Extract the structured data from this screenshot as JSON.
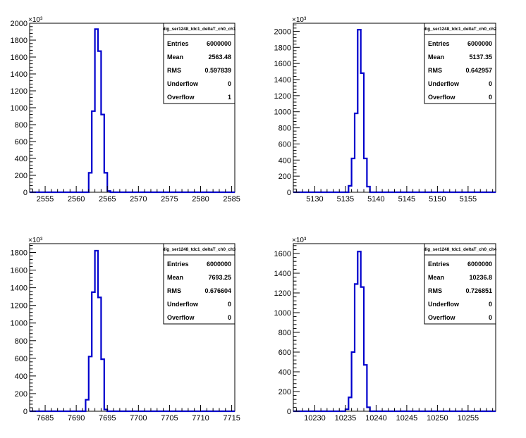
{
  "colors": {
    "histogram": "#0000cc",
    "axis": "#000000",
    "background": "#ffffff"
  },
  "chart_data": [
    {
      "type": "bar",
      "histogram_name": "dig_ser1248_tdc1_deltaT_ch0_ch1",
      "exponent_label": "×10³",
      "xlim": [
        2552.5,
        2585.5
      ],
      "xticks": [
        2555,
        2560,
        2565,
        2570,
        2575,
        2580,
        2585
      ],
      "ylim": [
        0,
        2000
      ],
      "yticks": [
        0,
        200,
        400,
        600,
        800,
        1000,
        1200,
        1400,
        1600,
        1800,
        2000
      ],
      "bin_width": 0.5,
      "bins": [
        {
          "x": 2562.0,
          "value": 230
        },
        {
          "x": 2562.5,
          "value": 960
        },
        {
          "x": 2563.0,
          "value": 1930
        },
        {
          "x": 2563.5,
          "value": 1670
        },
        {
          "x": 2564.0,
          "value": 920
        },
        {
          "x": 2564.5,
          "value": 230
        },
        {
          "x": 2565.0,
          "value": 15
        }
      ],
      "stats": [
        {
          "label": "Entries",
          "value": "6000000"
        },
        {
          "label": "Mean",
          "value": "2563.48"
        },
        {
          "label": "RMS",
          "value": "0.597839"
        },
        {
          "label": "Underflow",
          "value": "0"
        },
        {
          "label": "Overflow",
          "value": "1"
        }
      ]
    },
    {
      "type": "bar",
      "histogram_name": "dig_ser1248_tdc1_deltaT_ch0_ch2",
      "exponent_label": "×10³",
      "xlim": [
        5126.5,
        5159.5
      ],
      "xticks": [
        5130,
        5135,
        5140,
        5145,
        5150,
        5155
      ],
      "ylim": [
        0,
        2100
      ],
      "yticks": [
        0,
        200,
        400,
        600,
        800,
        1000,
        1200,
        1400,
        1600,
        1800,
        2000
      ],
      "bin_width": 0.5,
      "bins": [
        {
          "x": 5135.5,
          "value": 80
        },
        {
          "x": 5136.0,
          "value": 420
        },
        {
          "x": 5136.5,
          "value": 980
        },
        {
          "x": 5137.0,
          "value": 2020
        },
        {
          "x": 5137.5,
          "value": 1480
        },
        {
          "x": 5138.0,
          "value": 420
        },
        {
          "x": 5138.5,
          "value": 70
        }
      ],
      "stats": [
        {
          "label": "Entries",
          "value": "6000000"
        },
        {
          "label": "Mean",
          "value": "5137.35"
        },
        {
          "label": "RMS",
          "value": "0.642957"
        },
        {
          "label": "Underflow",
          "value": "0"
        },
        {
          "label": "Overflow",
          "value": "0"
        }
      ]
    },
    {
      "type": "bar",
      "histogram_name": "dig_ser1248_tdc1_deltaT_ch0_ch3",
      "exponent_label": "×10³",
      "xlim": [
        7682.5,
        7715.5
      ],
      "xticks": [
        7685,
        7690,
        7695,
        7700,
        7705,
        7710,
        7715
      ],
      "ylim": [
        0,
        1900
      ],
      "yticks": [
        0,
        200,
        400,
        600,
        800,
        1000,
        1200,
        1400,
        1600,
        1800
      ],
      "bin_width": 0.5,
      "bins": [
        {
          "x": 7691.5,
          "value": 130
        },
        {
          "x": 7692.0,
          "value": 620
        },
        {
          "x": 7692.5,
          "value": 1350
        },
        {
          "x": 7693.0,
          "value": 1820
        },
        {
          "x": 7693.5,
          "value": 1290
        },
        {
          "x": 7694.0,
          "value": 590
        },
        {
          "x": 7694.5,
          "value": 20
        }
      ],
      "stats": [
        {
          "label": "Entries",
          "value": "6000000"
        },
        {
          "label": "Mean",
          "value": "7693.25"
        },
        {
          "label": "RMS",
          "value": "0.676604"
        },
        {
          "label": "Underflow",
          "value": "0"
        },
        {
          "label": "Overflow",
          "value": "0"
        }
      ]
    },
    {
      "type": "bar",
      "histogram_name": "dig_ser1248_tdc1_deltaT_ch0_ch4",
      "exponent_label": "×10³",
      "xlim": [
        10226.5,
        10259.5
      ],
      "xticks": [
        10230,
        10235,
        10240,
        10245,
        10250,
        10255
      ],
      "ylim": [
        0,
        1700
      ],
      "yticks": [
        0,
        200,
        400,
        600,
        800,
        1000,
        1200,
        1400,
        1600
      ],
      "bin_width": 0.5,
      "bins": [
        {
          "x": 10235.0,
          "value": 20
        },
        {
          "x": 10235.5,
          "value": 140
        },
        {
          "x": 10236.0,
          "value": 600
        },
        {
          "x": 10236.5,
          "value": 1290
        },
        {
          "x": 10237.0,
          "value": 1620
        },
        {
          "x": 10237.5,
          "value": 1260
        },
        {
          "x": 10238.0,
          "value": 470
        },
        {
          "x": 10238.5,
          "value": 40
        }
      ],
      "stats": [
        {
          "label": "Entries",
          "value": "6000000"
        },
        {
          "label": "Mean",
          "value": "10236.8"
        },
        {
          "label": "RMS",
          "value": "0.726851"
        },
        {
          "label": "Underflow",
          "value": "0"
        },
        {
          "label": "Overflow",
          "value": "0"
        }
      ]
    }
  ]
}
